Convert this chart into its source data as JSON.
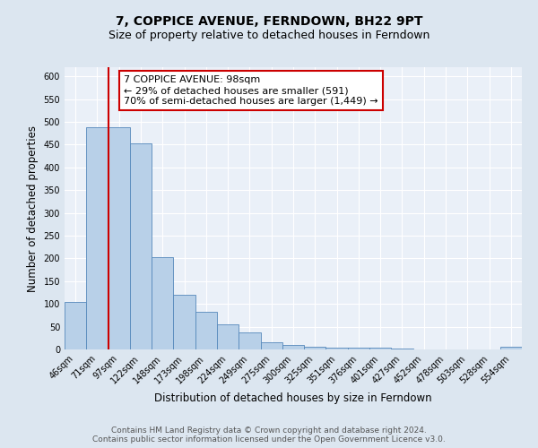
{
  "title": "7, COPPICE AVENUE, FERNDOWN, BH22 9PT",
  "subtitle": "Size of property relative to detached houses in Ferndown",
  "xlabel": "Distribution of detached houses by size in Ferndown",
  "ylabel": "Number of detached properties",
  "bin_labels": [
    "46sqm",
    "71sqm",
    "97sqm",
    "122sqm",
    "148sqm",
    "173sqm",
    "198sqm",
    "224sqm",
    "249sqm",
    "275sqm",
    "300sqm",
    "325sqm",
    "351sqm",
    "376sqm",
    "401sqm",
    "427sqm",
    "452sqm",
    "478sqm",
    "503sqm",
    "528sqm",
    "554sqm"
  ],
  "bar_heights": [
    105,
    488,
    488,
    452,
    202,
    121,
    82,
    55,
    38,
    15,
    10,
    5,
    3,
    3,
    4,
    2,
    0,
    0,
    0,
    0,
    5
  ],
  "bar_color": "#b8d0e8",
  "bar_edgecolor": "#5588bb",
  "vline_color": "#cc0000",
  "annotation_text": "7 COPPICE AVENUE: 98sqm\n← 29% of detached houses are smaller (591)\n70% of semi-detached houses are larger (1,449) →",
  "annotation_box_edgecolor": "#cc0000",
  "ylim": [
    0,
    620
  ],
  "yticks": [
    0,
    50,
    100,
    150,
    200,
    250,
    300,
    350,
    400,
    450,
    500,
    550,
    600
  ],
  "footer_line1": "Contains HM Land Registry data © Crown copyright and database right 2024.",
  "footer_line2": "Contains public sector information licensed under the Open Government Licence v3.0.",
  "bg_color": "#dce6f0",
  "plot_bg_color": "#eaf0f8",
  "title_fontsize": 10,
  "subtitle_fontsize": 9,
  "axis_label_fontsize": 8.5,
  "tick_fontsize": 7,
  "annotation_fontsize": 8,
  "footer_fontsize": 6.5
}
